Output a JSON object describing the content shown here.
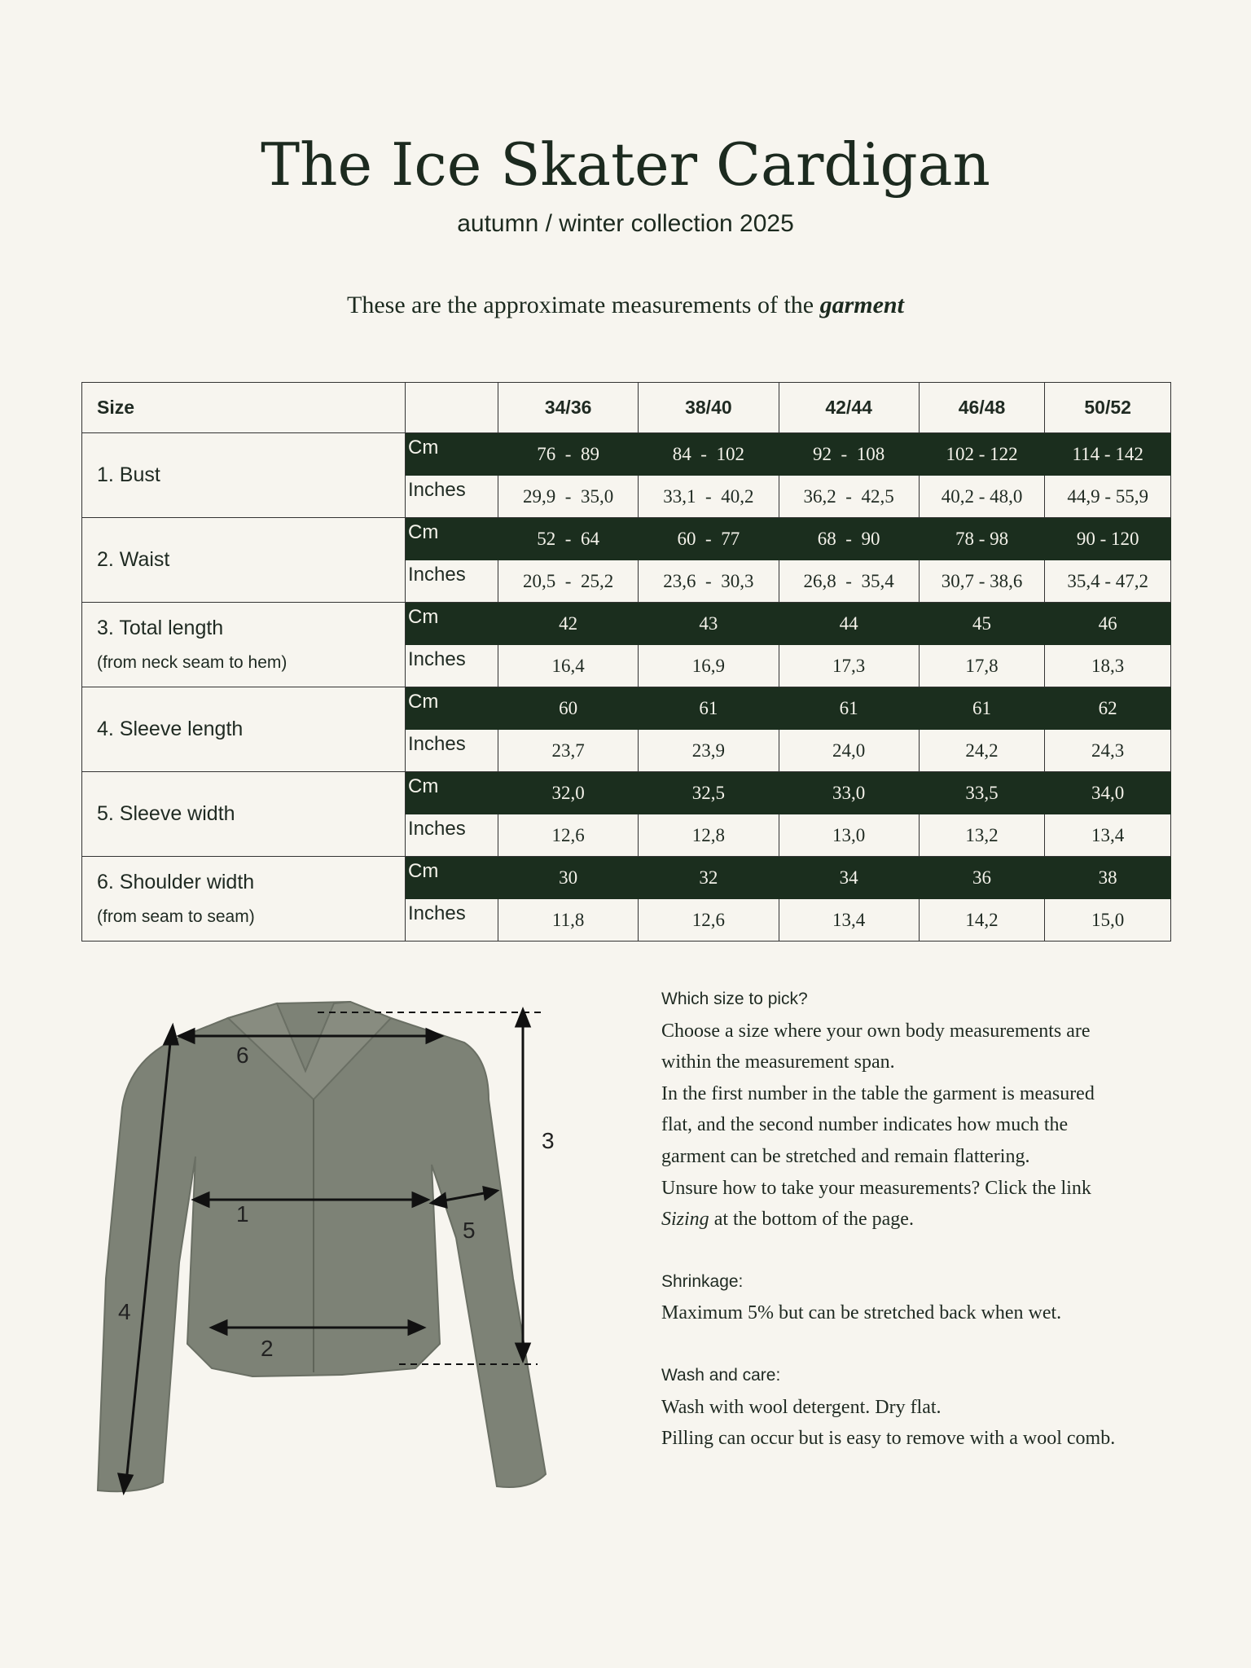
{
  "title": "The Ice Skater Cardigan",
  "subtitle": "autumn / winter collection 2025",
  "intro": {
    "text": "These are the approximate measurements of the ",
    "emphasis": "garment"
  },
  "table": {
    "size_header": "Size",
    "sizes": [
      "34/36",
      "38/40",
      "42/44",
      "46/48",
      "50/52"
    ],
    "unit_cm": "Cm",
    "unit_in": "Inches",
    "rows": [
      {
        "label": "1. Bust",
        "sub": "",
        "cm": [
          "76  -  89",
          "84  -  102",
          "92  -  108",
          "102 - 122",
          "114 - 142"
        ],
        "in": [
          "29,9  -  35,0",
          "33,1  -  40,2",
          "36,2  -  42,5",
          "40,2 - 48,0",
          "44,9 - 55,9"
        ]
      },
      {
        "label": "2. Waist",
        "sub": "",
        "cm": [
          "52  -  64",
          "60  -  77",
          "68  -  90",
          "78 - 98",
          "90 - 120"
        ],
        "in": [
          "20,5  -  25,2",
          "23,6  -  30,3",
          "26,8  -  35,4",
          "30,7 - 38,6",
          "35,4 - 47,2"
        ]
      },
      {
        "label": "3. Total length",
        "sub": "(from neck seam to hem)",
        "cm": [
          "42",
          "43",
          "44",
          "45",
          "46"
        ],
        "in": [
          "16,4",
          "16,9",
          "17,3",
          "17,8",
          "18,3"
        ]
      },
      {
        "label": "4. Sleeve length",
        "sub": "",
        "cm": [
          "60",
          "61",
          "61",
          "61",
          "62"
        ],
        "in": [
          "23,7",
          "23,9",
          "24,0",
          "24,2",
          "24,3"
        ]
      },
      {
        "label": "5. Sleeve width",
        "sub": "",
        "cm": [
          "32,0",
          "32,5",
          "33,0",
          "33,5",
          "34,0"
        ],
        "in": [
          "12,6",
          "12,8",
          "13,0",
          "13,2",
          "13,4"
        ]
      },
      {
        "label": "6. Shoulder width",
        "sub": "(from seam to seam)",
        "cm": [
          "30",
          "32",
          "34",
          "36",
          "38"
        ],
        "in": [
          "11,8",
          "12,6",
          "13,4",
          "14,2",
          "15,0"
        ]
      }
    ]
  },
  "figure": {
    "labels": [
      "1",
      "2",
      "3",
      "4",
      "5",
      "6"
    ],
    "garment_color": "#7d8276"
  },
  "info": {
    "pick_heading": "Which size to pick?",
    "pick_lines": [
      "Choose a size where your own body measurements are",
      "within the measurement span.",
      "In the first number in the table the garment is measured",
      "flat, and the second number indicates how much the",
      "garment can be stretched and remain flattering.",
      "Unsure how to take your measurements? Click the link"
    ],
    "sizing_link": "Sizing",
    "sizing_rest": " at the bottom of the page.",
    "shrink_heading": "Shrinkage:",
    "shrink_text": "Maximum 5% but can be stretched back when wet.",
    "wash_heading": "Wash and care:",
    "wash_lines": [
      "Wash with wool detergent. Dry flat.",
      "Pilling can occur but is easy to remove with a wool comb."
    ]
  },
  "colors": {
    "dark_green": "#1b2e1e",
    "background": "#f7f5ef"
  }
}
